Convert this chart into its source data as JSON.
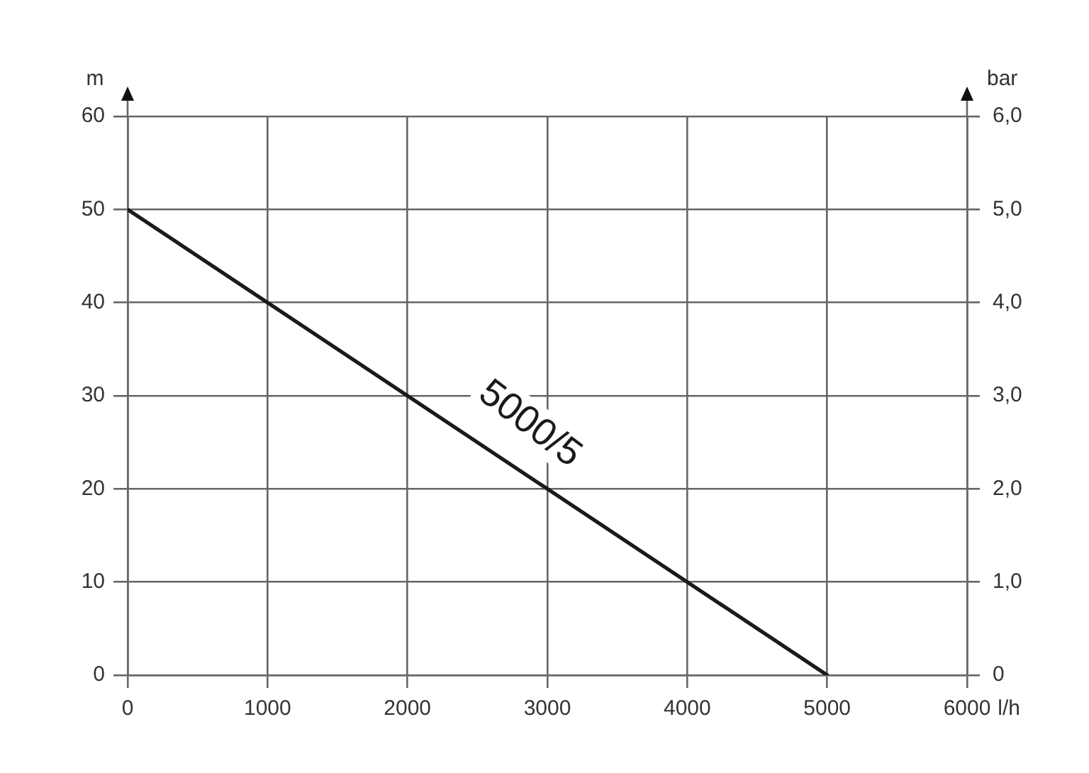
{
  "chart_data": {
    "type": "line",
    "xlabel": "l/h",
    "ylabel": "m",
    "y2label": "bar",
    "x": [
      0,
      5000
    ],
    "series": [
      {
        "name": "5000/5",
        "color": "#1a1a1a",
        "values": [
          50,
          0
        ]
      }
    ],
    "xlim": [
      0,
      6000
    ],
    "xticks": [
      0,
      1000,
      2000,
      3000,
      4000,
      5000,
      6000
    ],
    "ylim": [
      0,
      60
    ],
    "yticks": [
      0,
      10,
      20,
      30,
      40,
      50,
      60
    ],
    "y2lim": [
      0,
      6
    ],
    "y2ticks": [
      0,
      {
        "value": 1,
        "label": "1,0"
      },
      {
        "value": 2,
        "label": "2,0"
      },
      {
        "value": 3,
        "label": "3,0"
      },
      {
        "value": 4,
        "label": "4,0"
      },
      {
        "value": 5,
        "label": "5,0"
      },
      {
        "value": 6,
        "label": "6,0"
      }
    ],
    "grid": true,
    "legend": false,
    "marker": "none",
    "line_style": "solid"
  }
}
